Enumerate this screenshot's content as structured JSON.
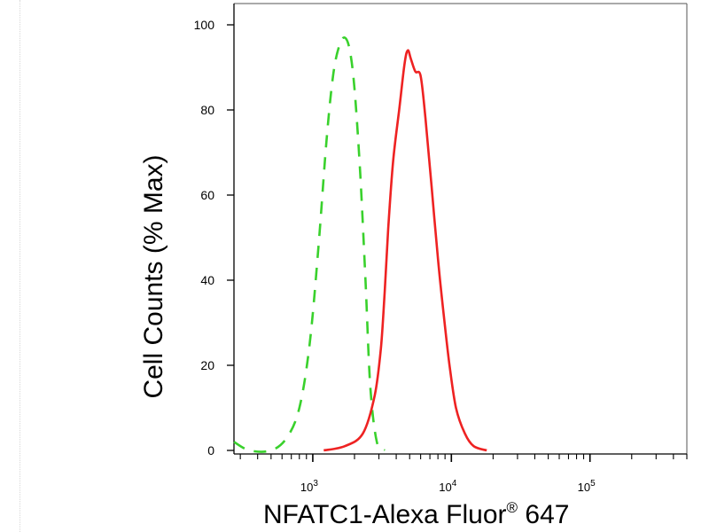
{
  "chart_data": {
    "type": "line",
    "title": "",
    "xlabel_text": "NFATC1-Alexa Fluor",
    "xlabel_sup": "®",
    "xlabel_tail": " 647",
    "ylabel": "Cell Counts (% Max)",
    "x_scale": "log",
    "xlim": [
      270,
      500000
    ],
    "ylim": [
      0,
      100
    ],
    "y_ticks": [
      0,
      20,
      40,
      60,
      80,
      100
    ],
    "x_tick_labels": [
      {
        "base": "10",
        "exp": "3",
        "value": 1000
      },
      {
        "base": "10",
        "exp": "4",
        "value": 10000
      },
      {
        "base": "10",
        "exp": "5",
        "value": 100000
      }
    ],
    "grid": false,
    "series": [
      {
        "color": "#39d12c",
        "style": "dashed",
        "points": [
          [
            270,
            2
          ],
          [
            350,
            0
          ],
          [
            500,
            0
          ],
          [
            650,
            3
          ],
          [
            800,
            10
          ],
          [
            950,
            25
          ],
          [
            1100,
            48
          ],
          [
            1250,
            72
          ],
          [
            1400,
            88
          ],
          [
            1550,
            95
          ],
          [
            1700,
            97
          ],
          [
            1850,
            94
          ],
          [
            2000,
            85
          ],
          [
            2200,
            65
          ],
          [
            2400,
            40
          ],
          [
            2600,
            15
          ],
          [
            2900,
            2
          ],
          [
            3300,
            0
          ]
        ]
      },
      {
        "color": "#ee2222",
        "style": "solid",
        "points": [
          [
            1200,
            0
          ],
          [
            1700,
            1
          ],
          [
            2300,
            4
          ],
          [
            2800,
            13
          ],
          [
            3100,
            24
          ],
          [
            3300,
            37
          ],
          [
            3500,
            52
          ],
          [
            3800,
            68
          ],
          [
            4200,
            80
          ],
          [
            4600,
            91
          ],
          [
            4850,
            94
          ],
          [
            5100,
            92
          ],
          [
            5500,
            89
          ],
          [
            6000,
            88
          ],
          [
            6500,
            78
          ],
          [
            7200,
            62
          ],
          [
            8000,
            45
          ],
          [
            8800,
            32
          ],
          [
            9700,
            20
          ],
          [
            10800,
            10
          ],
          [
            12500,
            4
          ],
          [
            14500,
            1
          ],
          [
            18000,
            0
          ]
        ]
      }
    ]
  }
}
